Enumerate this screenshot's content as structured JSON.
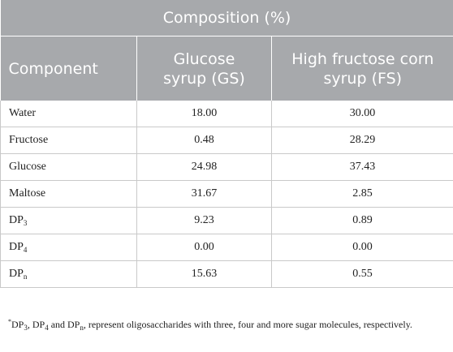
{
  "table": {
    "title": "Composition (%)",
    "headers": [
      "Component",
      "Glucose syrup (GS)",
      "High fructose corn syrup (FS)"
    ],
    "header_lines": {
      "gs": [
        "Glucose",
        "syrup (GS)"
      ],
      "fs": [
        "High fructose corn",
        "syrup (FS)"
      ]
    },
    "rows": [
      {
        "component": "Water",
        "gs": "18.00",
        "fs": "30.00"
      },
      {
        "component": "Fructose",
        "gs": "0.48",
        "fs": "28.29"
      },
      {
        "component": "Glucose",
        "gs": "24.98",
        "fs": "37.43"
      },
      {
        "component": "Maltose",
        "gs": "31.67",
        "fs": "2.85"
      },
      {
        "component_base": "DP",
        "component_sub": "3",
        "gs": "9.23",
        "fs": "0.89"
      },
      {
        "component_base": "DP",
        "component_sub": "4",
        "gs": "0.00",
        "fs": "0.00"
      },
      {
        "component_base": "DP",
        "component_sub": "n",
        "gs": "15.63",
        "fs": "0.55"
      }
    ]
  },
  "footnote": {
    "marker": "*",
    "dp3_base": "DP",
    "dp3_sub": "3",
    "sep1": ", ",
    "dp4_base": "DP",
    "dp4_sub": "4",
    "sep2": " and ",
    "dpn_base": "DP",
    "dpn_sub": "n",
    "rest": ", represent oligosaccharides with three, four and more sugar molecules, respectively."
  }
}
